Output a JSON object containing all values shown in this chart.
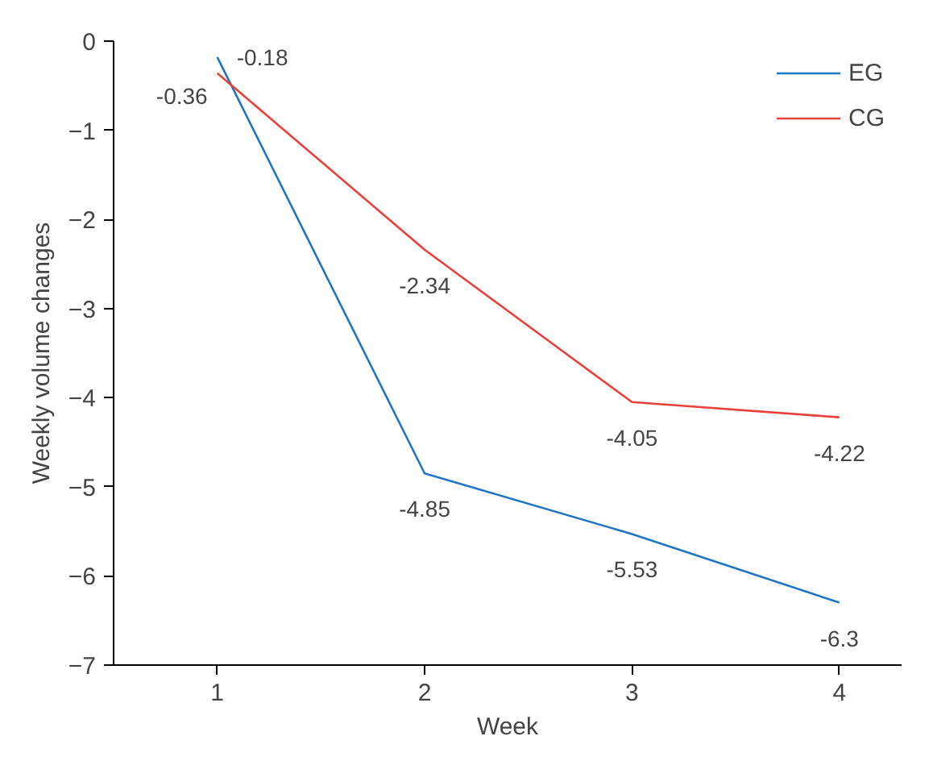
{
  "chart_data": {
    "type": "line",
    "xlabel": "Week",
    "ylabel": "Weekly volume changes",
    "x": [
      1,
      2,
      3,
      4
    ],
    "series": [
      {
        "name": "EG",
        "color": "#1f77c4",
        "values": [
          -0.18,
          -4.85,
          -5.53,
          -6.3
        ]
      },
      {
        "name": "CG",
        "color": "#e8403a",
        "values": [
          -0.36,
          -2.34,
          -4.05,
          -4.22
        ]
      }
    ],
    "xlim": [
      0.5,
      4.3
    ],
    "ylim": [
      -7,
      0
    ],
    "xticks": [
      1,
      2,
      3,
      4
    ],
    "yticks": [
      -7,
      -6,
      -5,
      -4,
      -3,
      -2,
      -1,
      0
    ],
    "grid": false,
    "legend": "top right",
    "data_labels": true,
    "marker": "none",
    "line_style": "solid"
  }
}
